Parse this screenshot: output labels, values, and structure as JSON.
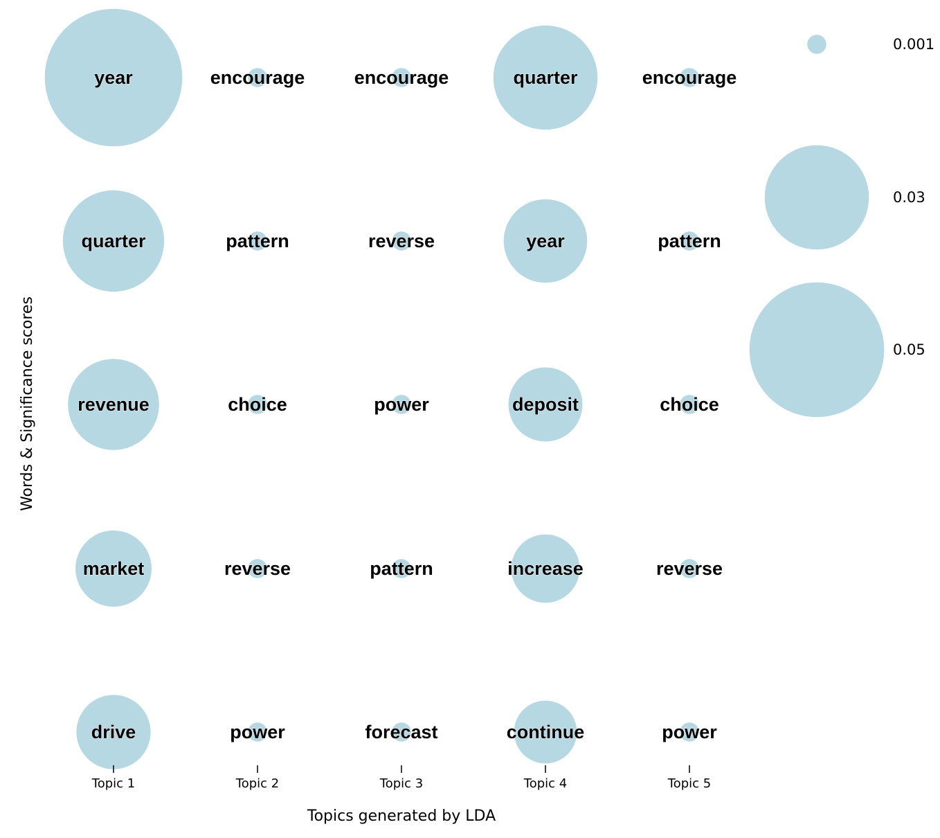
{
  "chart_data": {
    "type": "bubble-grid",
    "xlabel": "Topics generated by LDA",
    "ylabel": "Words & Significance scores",
    "bubble_color": "#b6d8e3",
    "topics": [
      {
        "name": "Topic 1",
        "words": [
          {
            "word": "year",
            "score": 0.0521
          },
          {
            "word": "quarter",
            "score": 0.0283
          },
          {
            "word": "revenue",
            "score": 0.0229
          },
          {
            "word": "market",
            "score": 0.016
          },
          {
            "word": "drive",
            "score": 0.0152
          }
        ]
      },
      {
        "name": "Topic 2",
        "words": [
          {
            "word": "encourage",
            "score": 0.001
          },
          {
            "word": "pattern",
            "score": 0.001
          },
          {
            "word": "choice",
            "score": 0.001
          },
          {
            "word": "reverse",
            "score": 0.001
          },
          {
            "word": "power",
            "score": 0.001
          }
        ]
      },
      {
        "name": "Topic 3",
        "words": [
          {
            "word": "encourage",
            "score": 0.001
          },
          {
            "word": "reverse",
            "score": 0.001
          },
          {
            "word": "power",
            "score": 0.001
          },
          {
            "word": "pattern",
            "score": 0.001
          },
          {
            "word": "forecast",
            "score": 0.001
          }
        ]
      },
      {
        "name": "Topic 4",
        "words": [
          {
            "word": "quarter",
            "score": 0.0299
          },
          {
            "word": "year",
            "score": 0.0192
          },
          {
            "word": "deposit",
            "score": 0.0151
          },
          {
            "word": "increase",
            "score": 0.0129
          },
          {
            "word": "continue",
            "score": 0.0109
          }
        ]
      },
      {
        "name": "Topic 5",
        "words": [
          {
            "word": "encourage",
            "score": 0.001
          },
          {
            "word": "pattern",
            "score": 0.001
          },
          {
            "word": "choice",
            "score": 0.001
          },
          {
            "word": "reverse",
            "score": 0.001
          },
          {
            "word": "power",
            "score": 0.001
          }
        ]
      }
    ],
    "legend": [
      {
        "label": "0.001",
        "value": 0.001
      },
      {
        "label": "0.03",
        "value": 0.03
      },
      {
        "label": "0.05",
        "value": 0.05
      }
    ]
  }
}
